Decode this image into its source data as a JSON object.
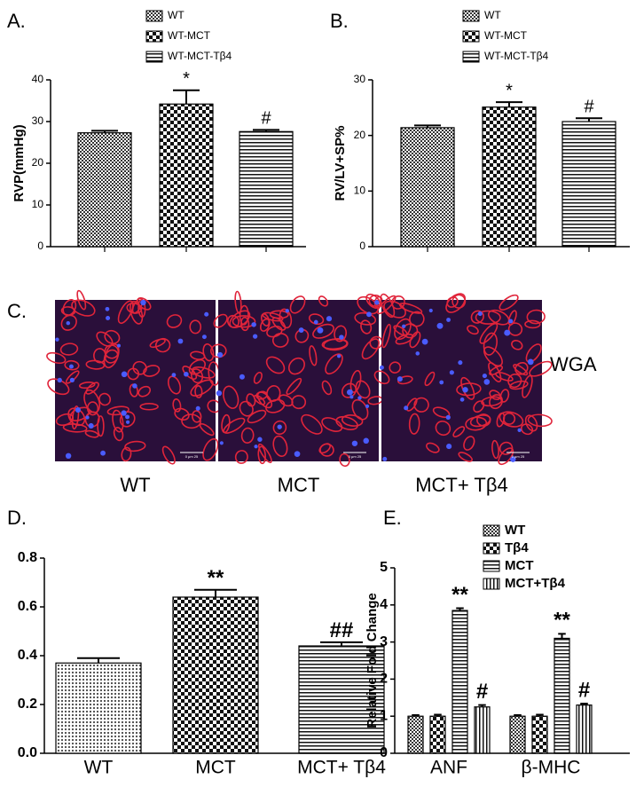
{
  "chart_data": [
    {
      "type": "bar",
      "panel": "A.",
      "ylabel": "RVP(mmHg)",
      "ylim": [
        0,
        40
      ],
      "yticks": [
        0,
        10,
        20,
        30,
        40
      ],
      "series": [
        {
          "name": "WT",
          "pattern": "checker-small",
          "values": [
            27.3
          ],
          "errors": [
            0.5
          ]
        },
        {
          "name": "WT-MCT",
          "pattern": "checker-large",
          "values": [
            34.2
          ],
          "errors": [
            3.3
          ],
          "annotations": [
            "*"
          ]
        },
        {
          "name": "WT-MCT-Tβ4",
          "pattern": "hlines",
          "values": [
            27.6
          ],
          "errors": [
            0.4
          ],
          "annotations": [
            "#"
          ]
        }
      ]
    },
    {
      "type": "bar",
      "panel": "B.",
      "ylabel": "RV/LV+SP%",
      "ylim": [
        0,
        30
      ],
      "yticks": [
        0,
        10,
        20,
        30
      ],
      "series": [
        {
          "name": "WT",
          "pattern": "checker-small",
          "values": [
            21.4
          ],
          "errors": [
            0.4
          ]
        },
        {
          "name": "WT-MCT",
          "pattern": "checker-large",
          "values": [
            25.1
          ],
          "errors": [
            0.9
          ],
          "annotations": [
            "*"
          ]
        },
        {
          "name": "WT-MCT-Tβ4",
          "pattern": "hlines",
          "values": [
            22.5
          ],
          "errors": [
            0.6
          ],
          "annotations": [
            "#"
          ]
        }
      ]
    },
    {
      "type": "bar",
      "panel": "D.",
      "ylim": [
        0,
        0.8
      ],
      "yticks": [
        {
          "value": 0,
          "label": "0.0"
        },
        0.2,
        0.4,
        0.6,
        0.8
      ],
      "categories": [
        "WT",
        "MCT",
        "MCT+ Tβ4"
      ],
      "values": [
        0.37,
        0.64,
        0.44
      ],
      "errors": [
        0.02,
        0.03,
        0.015
      ],
      "annotations": [
        null,
        "**",
        "##"
      ],
      "patterns": [
        "dots",
        "checker-large",
        "hlines"
      ]
    },
    {
      "type": "bar",
      "panel": "E.",
      "ylabel": "Relative Fold Change",
      "ylim": [
        0,
        5
      ],
      "yticks": [
        0,
        1,
        2,
        3,
        4,
        5
      ],
      "categories": [
        "ANF",
        "β-MHC"
      ],
      "series": [
        {
          "name": "WT",
          "pattern": "checker-small",
          "values": [
            1,
            1
          ],
          "errors": [
            0.03,
            0.03
          ]
        },
        {
          "name": "Tβ4",
          "pattern": "checker-large",
          "values": [
            1,
            1
          ],
          "errors": [
            0.04,
            0.04
          ]
        },
        {
          "name": "MCT",
          "pattern": "hlines",
          "values": [
            3.85,
            3.1
          ],
          "errors": [
            0.06,
            0.12
          ],
          "annotations": [
            "**",
            "**"
          ]
        },
        {
          "name": "MCT+Tβ4",
          "pattern": "vlines",
          "values": [
            1.25,
            1.3
          ],
          "errors": [
            0.05,
            0.04
          ],
          "annotations": [
            "#",
            "#"
          ]
        }
      ]
    }
  ],
  "panel_c": {
    "label": "C.",
    "images": [
      "WT",
      "MCT",
      "MCT+ Tβ4"
    ],
    "stain": "WGA",
    "scale_bar": "0 μm 25"
  }
}
